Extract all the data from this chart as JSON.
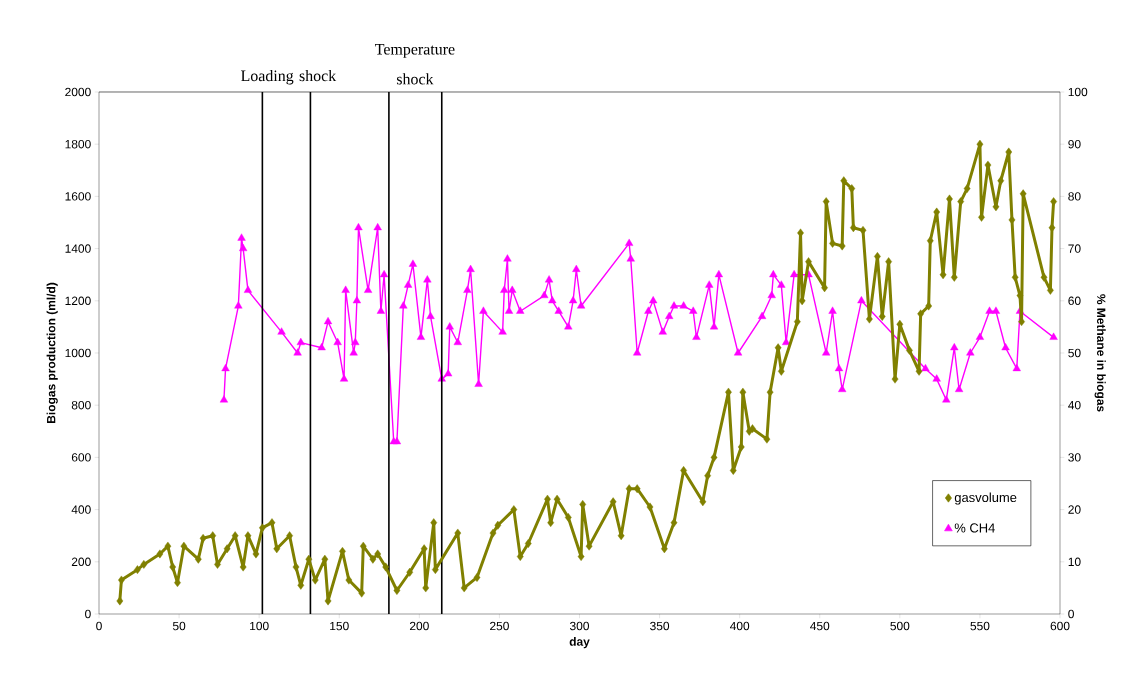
{
  "chart_data": {
    "type": "line",
    "xlabel": "day",
    "ylabel": "Biogas production (ml/d)",
    "y2label": "% Methane in biogas",
    "xlim": [
      0,
      600
    ],
    "xticks": [
      0,
      50,
      100,
      150,
      200,
      250,
      300,
      350,
      400,
      450,
      500,
      550,
      600
    ],
    "ylim": [
      0,
      2000
    ],
    "yticks": [
      0,
      200,
      400,
      600,
      800,
      1000,
      1200,
      1400,
      1600,
      1800,
      2000
    ],
    "y2lim": [
      0,
      100
    ],
    "y2ticks": [
      0,
      10,
      20,
      30,
      40,
      50,
      60,
      70,
      80,
      90,
      100
    ],
    "legend": "bottom right",
    "grid": false,
    "line_style": "solid",
    "ref_lines": [
      {
        "axis": "x",
        "value": 102,
        "label": "Loading shock",
        "color": "#000000"
      },
      {
        "axis": "x",
        "value": 132,
        "label": null,
        "color": "#000000"
      },
      {
        "axis": "x",
        "value": 181,
        "label": "Temperature shock",
        "color": "#000000"
      },
      {
        "axis": "x",
        "value": 214,
        "label": null,
        "color": "#000000"
      }
    ],
    "series": [
      {
        "name": "gasvolume",
        "color": "#808000",
        "marker": "diamond",
        "x": [
          13,
          14,
          24,
          28,
          38,
          43,
          46,
          49,
          53,
          62,
          65,
          71,
          74,
          80,
          85,
          90,
          93,
          98,
          102,
          108,
          111,
          119,
          123,
          126,
          131,
          135,
          141,
          143,
          152,
          156,
          164,
          165,
          171,
          174,
          179,
          186,
          194,
          203,
          204,
          209,
          210,
          224,
          228,
          236,
          246,
          249,
          259,
          263,
          268,
          280,
          282,
          286,
          293,
          301,
          302,
          306,
          321,
          326,
          331,
          336,
          344,
          353,
          359,
          365,
          377,
          380,
          384,
          393,
          396,
          401,
          402,
          406,
          408,
          417,
          419,
          424,
          426,
          436,
          438,
          439,
          443,
          453,
          454,
          458,
          464,
          465,
          470,
          471,
          477,
          481,
          486,
          489,
          493,
          497,
          500,
          506,
          512,
          513,
          518,
          519,
          523,
          527,
          531,
          534,
          538,
          542,
          550,
          551,
          555,
          560,
          563,
          568,
          570,
          572,
          575,
          576,
          577,
          590,
          594,
          595,
          596
        ],
        "values": [
          50,
          130,
          170,
          190,
          230,
          260,
          180,
          120,
          260,
          210,
          290,
          300,
          190,
          250,
          300,
          180,
          300,
          230,
          330,
          350,
          250,
          300,
          180,
          110,
          210,
          130,
          210,
          50,
          240,
          130,
          80,
          260,
          210,
          230,
          180,
          90,
          160,
          250,
          100,
          350,
          170,
          310,
          100,
          140,
          310,
          340,
          400,
          220,
          270,
          440,
          350,
          440,
          370,
          220,
          420,
          260,
          430,
          300,
          480,
          480,
          410,
          250,
          350,
          550,
          430,
          530,
          600,
          850,
          550,
          640,
          850,
          700,
          710,
          670,
          850,
          1020,
          930,
          1120,
          1460,
          1200,
          1350,
          1250,
          1580,
          1420,
          1410,
          1660,
          1630,
          1480,
          1470,
          1130,
          1370,
          1140,
          1350,
          900,
          1110,
          1010,
          930,
          1150,
          1180,
          1430,
          1540,
          1300,
          1590,
          1290,
          1580,
          1630,
          1800,
          1520,
          1720,
          1560,
          1660,
          1770,
          1510,
          1290,
          1220,
          1120,
          1610,
          1290,
          1240,
          1480,
          1580
        ]
      },
      {
        "name": "% CH4",
        "color": "#ff00ff",
        "marker": "triangle",
        "axis": "y2",
        "x": [
          78,
          79,
          87,
          89,
          90,
          93,
          114,
          124,
          126,
          139,
          143,
          149,
          153,
          154,
          159,
          160,
          161,
          162,
          168,
          174,
          176,
          178,
          184,
          186,
          190,
          193,
          196,
          201,
          205,
          207,
          214,
          218,
          219,
          224,
          230,
          232,
          237,
          240,
          252,
          253,
          255,
          256,
          258,
          263,
          278,
          281,
          283,
          287,
          293,
          296,
          298,
          301,
          331,
          332,
          336,
          343,
          346,
          352,
          356,
          359,
          365,
          371,
          373,
          381,
          384,
          387,
          399,
          414,
          420,
          421,
          426,
          429,
          434,
          443,
          454,
          458,
          462,
          464,
          476,
          516,
          523,
          529,
          534,
          537,
          544,
          550,
          556,
          560,
          566,
          573,
          575,
          596
        ],
        "values": [
          41,
          47,
          59,
          72,
          70,
          62,
          54,
          50,
          52,
          51,
          56,
          52,
          45,
          62,
          50,
          52,
          60,
          74,
          62,
          74,
          58,
          65,
          33,
          33,
          59,
          63,
          67,
          53,
          64,
          57,
          45,
          46,
          55,
          52,
          62,
          66,
          44,
          58,
          54,
          62,
          68,
          58,
          62,
          58,
          61,
          64,
          60,
          58,
          55,
          60,
          66,
          59,
          71,
          68,
          50,
          58,
          60,
          54,
          57,
          59,
          59,
          58,
          53,
          63,
          55,
          65,
          50,
          57,
          61,
          65,
          63,
          52,
          65,
          65,
          50,
          58,
          47,
          43,
          60,
          47,
          45,
          41,
          51,
          43,
          50,
          53,
          58,
          58,
          51,
          47,
          58,
          53
        ]
      }
    ]
  }
}
